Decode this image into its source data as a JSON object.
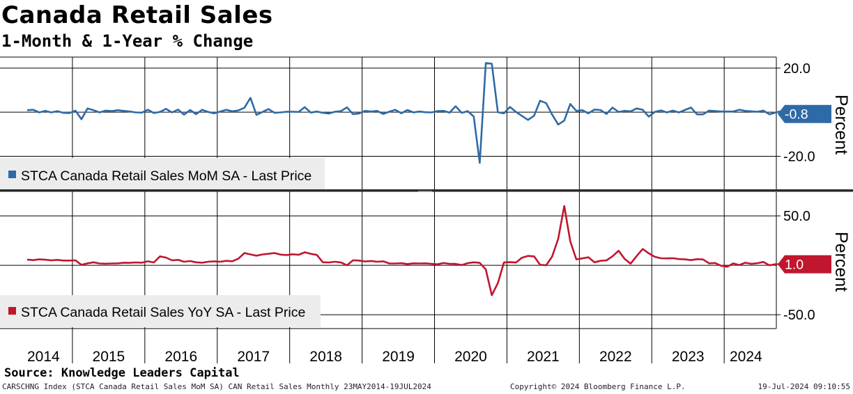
{
  "title": "Canada Retail Sales",
  "subtitle": "1-Month & 1-Year % Change",
  "source": "Source: Knowledge Leaders Capital",
  "footer": {
    "left": "CARSCHNG Index (STCA Canada Retail Sales MoM SA) CAN Retail Sales  Monthly 23MAY2014-19JUL2024",
    "middle": "Copyright© 2024 Bloomberg Finance L.P.",
    "right": "19-Jul-2024 09:10:55"
  },
  "colors": {
    "mom": "#2e6aa6",
    "yoy": "#c0162e"
  },
  "chart_data": [
    {
      "type": "line",
      "name": "STCA Canada Retail Sales MoM SA - Last Price",
      "legend": "STCA Canada Retail Sales MoM SA - Last Price",
      "ylabel": "Percent",
      "ylim": [
        -35,
        25
      ],
      "yticks": [
        20.0,
        -20.0
      ],
      "ytick_labels": [
        "20.0",
        "-20.0"
      ],
      "last_value": -0.8,
      "last_label": "-0.8",
      "x_start": 2014.375,
      "x_step": 0.08333,
      "values": [
        0.9,
        1.1,
        -0.1,
        0.6,
        -0.1,
        0.5,
        -0.3,
        -0.4,
        0.7,
        -3.2,
        1.7,
        0.9,
        -0.1,
        0.7,
        0.5,
        0.9,
        0.6,
        0.3,
        -0.1,
        -0.2,
        1.1,
        -0.4,
        0.1,
        1.5,
        -0.1,
        1.2,
        -1.1,
        1.0,
        -0.9,
        1.1,
        0.1,
        -0.5,
        0.3,
        1.1,
        0.4,
        0.8,
        2.0,
        6.5,
        -1.2,
        0.1,
        1.4,
        -0.3,
        -0.1,
        0.2,
        0.2,
        0.1,
        2.3,
        -0.2,
        0.3,
        -0.3,
        -0.6,
        0.2,
        0.5,
        2.2,
        -0.9,
        -0.6,
        0.6,
        0.3,
        0.6,
        -0.8,
        0.2,
        1.1,
        -0.5,
        1.0,
        -0.1,
        0.3,
        0.0,
        -0.1,
        0.5,
        0.6,
        -0.2,
        2.7,
        -0.3,
        0.5,
        -2.0,
        -23.0,
        22.3,
        22.0,
        0.0,
        -0.5,
        2.4,
        0.1,
        -1.7,
        -3.5,
        -1.6,
        5.2,
        4.1,
        -1.1,
        -5.6,
        -3.8,
        3.7,
        0.6,
        0.9,
        -0.5,
        1.2,
        1.0,
        -0.8,
        2.1,
        0.1,
        0.6,
        0.4,
        1.7,
        1.1,
        -2.0,
        0.1,
        0.8,
        -0.1,
        0.7,
        -0.1,
        1.0,
        2.1,
        -1.0,
        -1.0,
        0.7,
        0.5,
        0.3,
        0.3,
        0.3,
        1.1,
        0.6,
        0.4,
        0.2,
        0.7,
        -1.0,
        -0.2,
        0.5,
        -0.6,
        -0.8
      ]
    },
    {
      "type": "line",
      "name": "STCA Canada Retail Sales YoY SA - Last Price",
      "legend": "STCA Canada Retail Sales YoY SA - Last Price",
      "ylabel": "Percent",
      "ylim": [
        -64,
        74
      ],
      "yticks": [
        50.0,
        -50.0
      ],
      "ytick_labels": [
        "50.0",
        "-50.0"
      ],
      "last_value": 1.0,
      "last_label": "1.0",
      "x_start": 2014.375,
      "x_step": 0.08333,
      "values": [
        5.8,
        5.2,
        6.0,
        5.6,
        5.0,
        5.5,
        4.8,
        4.8,
        5.0,
        0.5,
        2.0,
        3.0,
        1.8,
        1.6,
        1.8,
        2.0,
        2.6,
        2.5,
        2.9,
        2.6,
        4.0,
        2.9,
        9.0,
        7.8,
        5.0,
        5.5,
        3.6,
        4.3,
        3.0,
        2.6,
        3.6,
        4.0,
        3.6,
        4.5,
        4.1,
        6.7,
        12.4,
        11.0,
        9.7,
        11.0,
        11.6,
        12.4,
        10.8,
        10.4,
        11.1,
        10.6,
        13.2,
        11.6,
        10.5,
        3.0,
        2.9,
        3.6,
        2.8,
        0.0,
        5.1,
        4.8,
        3.9,
        4.4,
        3.6,
        4.0,
        1.9,
        1.8,
        2.1,
        1.3,
        2.0,
        1.8,
        2.0,
        1.5,
        1.0,
        2.3,
        1.5,
        1.4,
        0.2,
        2.2,
        3.0,
        2.5,
        -4.2,
        -30.3,
        -18.0,
        2.8,
        3.2,
        2.8,
        7.7,
        9.5,
        9.0,
        0.5,
        0.0,
        8.9,
        26.8,
        60.0,
        24.3,
        6.0,
        7.0,
        8.1,
        3.0,
        4.5,
        5.0,
        9.1,
        14.7,
        6.5,
        1.7,
        9.4,
        16.5,
        12.1,
        8.6,
        7.1,
        7.0,
        7.2,
        6.3,
        6.0,
        5.2,
        6.2,
        5.9,
        2.0,
        2.3,
        -0.5,
        -1.5,
        1.9,
        0.3,
        2.6,
        1.5,
        2.1,
        3.4,
        0.0,
        1.1,
        1.2,
        1.6,
        0.9,
        1.0
      ]
    }
  ],
  "x_axis": {
    "labels": [
      "2014",
      "2015",
      "2016",
      "2017",
      "2018",
      "2019",
      "2020",
      "2021",
      "2022",
      "2023",
      "2024"
    ],
    "label_years": [
      2014.6,
      2015.5,
      2016.5,
      2017.5,
      2018.5,
      2019.5,
      2020.5,
      2021.5,
      2022.5,
      2023.5,
      2024.3
    ],
    "major_lines": [
      2015,
      2016,
      2017,
      2018,
      2019,
      2020,
      2021,
      2022,
      2023,
      2024
    ]
  }
}
